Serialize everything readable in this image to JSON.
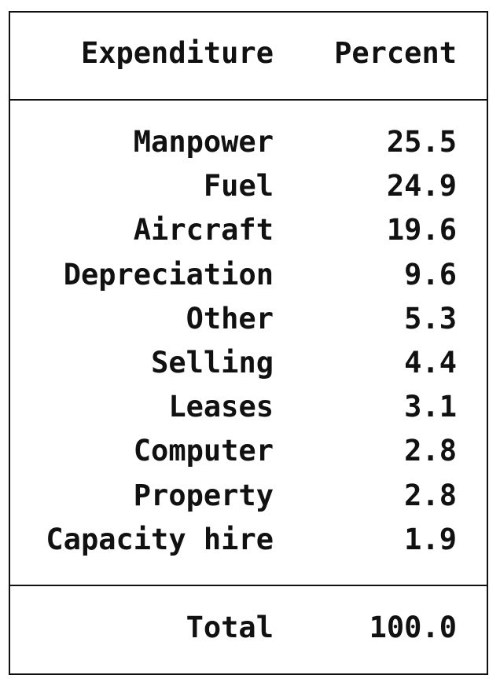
{
  "table": {
    "header": [
      "Expenditure",
      "Percent"
    ],
    "rows": [
      [
        "Manpower",
        "25.5"
      ],
      [
        "Fuel",
        "24.9"
      ],
      [
        "Aircraft",
        "19.6"
      ],
      [
        "Depreciation",
        "9.6"
      ],
      [
        "Other",
        "5.3"
      ],
      [
        "Selling",
        "4.4"
      ],
      [
        "Leases",
        "3.1"
      ],
      [
        "Computer",
        "2.8"
      ],
      [
        "Property",
        "2.8"
      ],
      [
        "Capacity hire",
        "1.9"
      ]
    ],
    "total": [
      "Total",
      "100.0"
    ]
  }
}
